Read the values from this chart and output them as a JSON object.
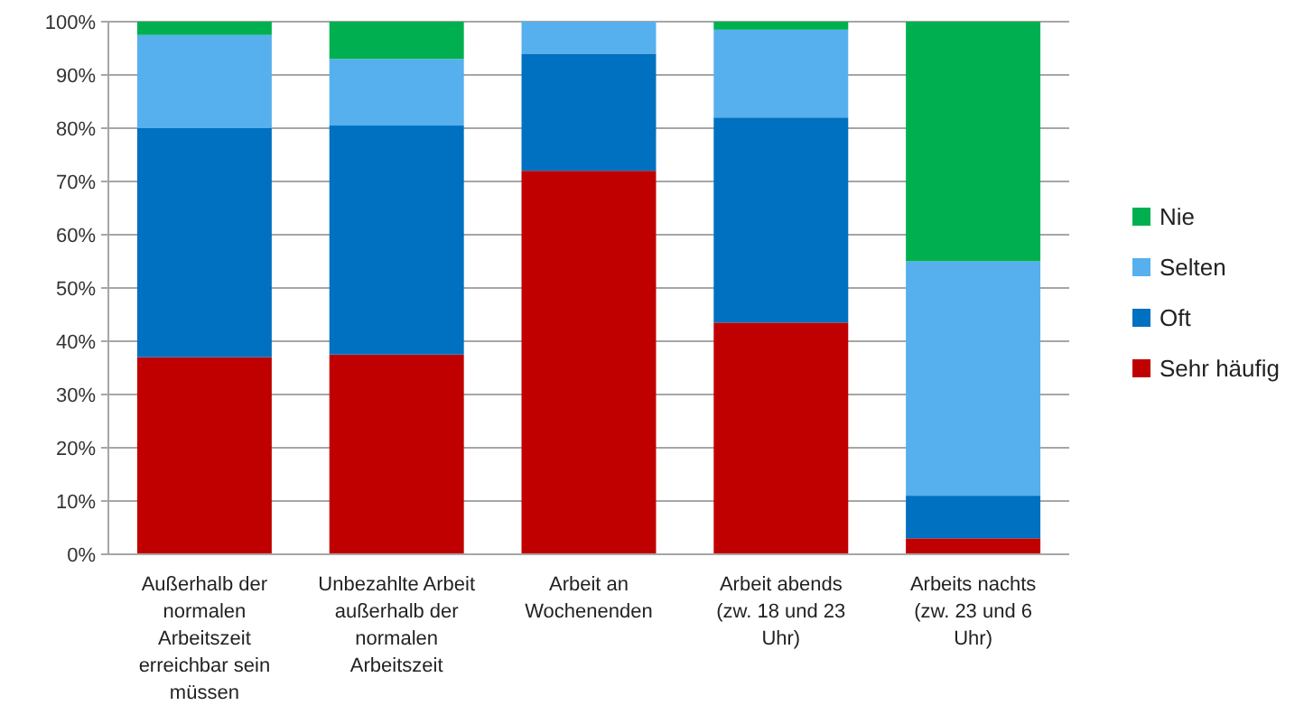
{
  "chart_data": {
    "type": "bar",
    "stacked": true,
    "categories": [
      "Außerhalb der normalen Arbeitszeit erreichbar sein müssen",
      "Unbezahlte Arbeit außerhalb der normalen Arbeitszeit",
      "Arbeit an Wochenenden",
      "Arbeit abends (zw. 18 und 23 Uhr)",
      "Arbeits nachts (zw. 23 und 6 Uhr)"
    ],
    "series": [
      {
        "name": "Sehr häufig",
        "color": "#c00000",
        "values": [
          37,
          37.5,
          72,
          43.5,
          3
        ]
      },
      {
        "name": "Oft",
        "color": "#0070c0",
        "values": [
          43,
          43,
          22,
          38.5,
          8
        ]
      },
      {
        "name": "Selten",
        "color": "#56b0ee",
        "values": [
          17.5,
          12.5,
          6,
          16.5,
          44
        ]
      },
      {
        "name": "Nie",
        "color": "#00b050",
        "values": [
          2.5,
          7,
          0,
          1.5,
          45
        ]
      }
    ],
    "ylim": [
      0,
      100
    ],
    "yticks": [
      {
        "value": 0,
        "label": "0%"
      },
      {
        "value": 10,
        "label": "10%"
      },
      {
        "value": 20,
        "label": "20%"
      },
      {
        "value": 30,
        "label": "30%"
      },
      {
        "value": 40,
        "label": "40%"
      },
      {
        "value": 50,
        "label": "50%"
      },
      {
        "value": 60,
        "label": "60%"
      },
      {
        "value": 70,
        "label": "70%"
      },
      {
        "value": 80,
        "label": "80%"
      },
      {
        "value": 90,
        "label": "90%"
      },
      {
        "value": 100,
        "label": "100%"
      }
    ],
    "grid": "y",
    "legend": "right"
  }
}
